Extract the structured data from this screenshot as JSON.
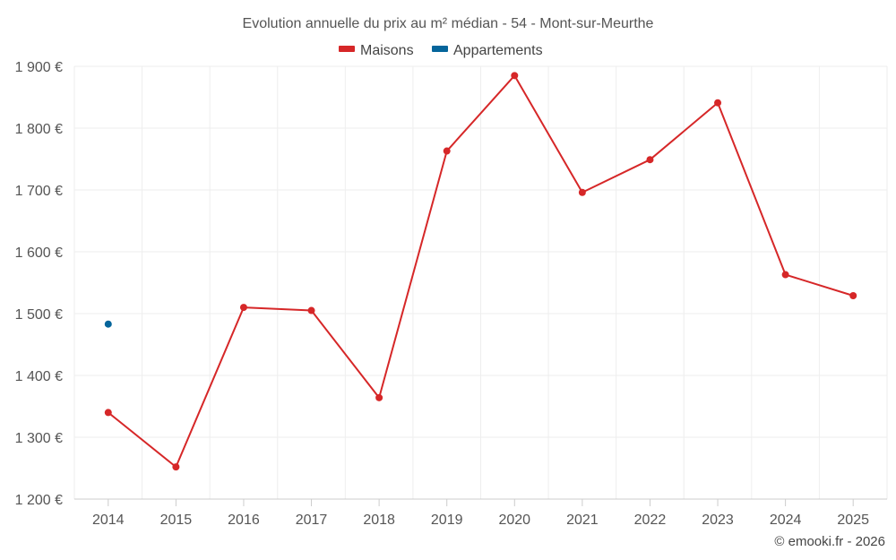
{
  "chart_data": {
    "type": "line",
    "title": "Evolution annuelle du prix au m² médian - 54 - Mont-sur-Meurthe",
    "categories": [
      "2014",
      "2015",
      "2016",
      "2017",
      "2018",
      "2019",
      "2020",
      "2021",
      "2022",
      "2023",
      "2024",
      "2025"
    ],
    "series": [
      {
        "name": "Maisons",
        "color": "#d62728",
        "values": [
          1340,
          1252,
          1510,
          1505,
          1364,
          1763,
          1885,
          1696,
          1749,
          1841,
          1563,
          1529
        ]
      },
      {
        "name": "Appartements",
        "color": "#05659b",
        "values": [
          1483,
          null,
          null,
          null,
          null,
          null,
          null,
          null,
          null,
          null,
          null,
          null
        ]
      }
    ],
    "ylim": [
      1200,
      1900
    ],
    "yticks": [
      1200,
      1300,
      1400,
      1500,
      1600,
      1700,
      1800,
      1900
    ],
    "ytick_labels": [
      "1 200 €",
      "1 300 €",
      "1 400 €",
      "1 500 €",
      "1 600 €",
      "1 700 €",
      "1 800 €",
      "1 900 €"
    ],
    "grid": true,
    "legend_position": "top-center"
  },
  "credit": "© emooki.fr - 2026"
}
